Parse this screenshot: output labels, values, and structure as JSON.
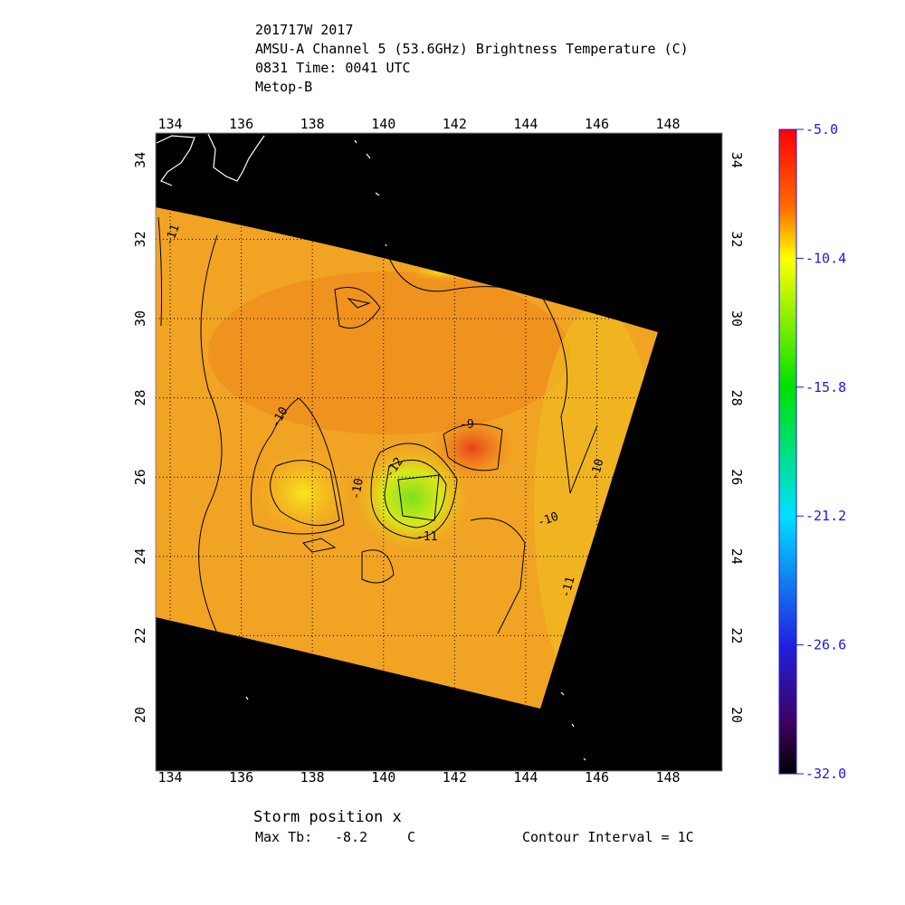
{
  "header": {
    "lines": [
      "201717W 2017",
      "AMSU-A Channel 5 (53.6GHz) Brightness Temperature (C)",
      "0831 Time: 0041 UTC",
      "Metop-B"
    ]
  },
  "map": {
    "lon_ticks": [
      134,
      136,
      138,
      140,
      142,
      144,
      146,
      148
    ],
    "lat_ticks": [
      20,
      22,
      24,
      26,
      28,
      30,
      32,
      34
    ],
    "contour_labels": [
      -11,
      -10,
      -9,
      -12,
      -10,
      -11,
      -10,
      -10,
      -11
    ]
  },
  "colorbar": {
    "range": [
      -32,
      -5
    ],
    "ticks": [
      {
        "value": -5,
        "label": "-5.0"
      },
      {
        "value": -10.4,
        "label": "-10.4"
      },
      {
        "value": -15.8,
        "label": "-15.8"
      },
      {
        "value": -21.2,
        "label": "-21.2"
      },
      {
        "value": -26.6,
        "label": "-26.6"
      },
      {
        "value": -32,
        "label": "-32.0"
      }
    ]
  },
  "footer": {
    "storm_position": "Storm position x",
    "max_tb_label": "Max Tb:",
    "max_tb": -8.2,
    "max_tb_unit": "C",
    "contour_interval": "Contour Interval = 1C"
  }
}
